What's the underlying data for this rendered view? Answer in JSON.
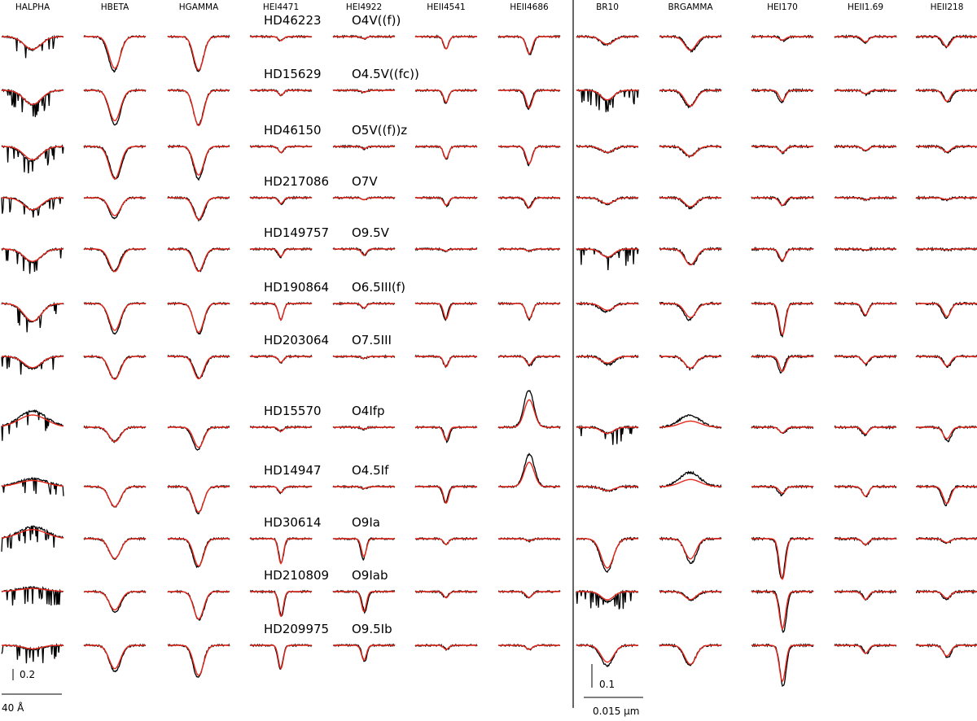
{
  "chart_data": {
    "type": "line",
    "title": "",
    "legend": "none",
    "grid": false,
    "colors": {
      "observed": "#000000",
      "model": "#e8281c"
    },
    "optical_columns": [
      "HALPHA",
      "HBETA",
      "HGAMMA",
      "HEI4471",
      "HEI4922",
      "HEII4541",
      "HEII4686"
    ],
    "ir_columns": [
      "BR10",
      "BRGAMMA",
      "HEI170",
      "HEII1.69",
      "HEII218"
    ],
    "stars": [
      {
        "id": "HD46223",
        "sptype": "O4V((f))"
      },
      {
        "id": "HD15629",
        "sptype": "O4.5V((fc))"
      },
      {
        "id": "HD46150",
        "sptype": "O5V((f))z"
      },
      {
        "id": "HD217086",
        "sptype": "O7V"
      },
      {
        "id": "HD149757",
        "sptype": "O9.5V"
      },
      {
        "id": "HD190864",
        "sptype": "O6.5III(f)"
      },
      {
        "id": "HD203064",
        "sptype": "O7.5III"
      },
      {
        "id": "HD15570",
        "sptype": "O4Ifp"
      },
      {
        "id": "HD14947",
        "sptype": "O4.5If"
      },
      {
        "id": "HD30614",
        "sptype": "O9Ia"
      },
      {
        "id": "HD210809",
        "sptype": "O9Iab"
      },
      {
        "id": "HD209975",
        "sptype": "O9.5Ib"
      }
    ],
    "scale_bars": {
      "optical": {
        "flux": "0.2",
        "wavelength": "40 Å"
      },
      "ir": {
        "flux": "0.1",
        "wavelength": "0.015 μm"
      }
    },
    "optical_depths": [
      [
        0.32,
        0.85,
        0.85,
        0.1,
        0.05,
        0.3,
        0.45
      ],
      [
        0.35,
        0.85,
        0.85,
        0.12,
        0.05,
        0.32,
        0.45
      ],
      [
        0.35,
        0.8,
        0.8,
        0.15,
        0.06,
        0.32,
        0.45
      ],
      [
        0.3,
        0.5,
        0.55,
        0.15,
        0.05,
        0.2,
        0.25
      ],
      [
        0.32,
        0.55,
        0.55,
        0.2,
        0.15,
        0.05,
        0.05
      ],
      [
        0.45,
        0.75,
        0.75,
        0.4,
        0.12,
        0.4,
        0.4
      ],
      [
        0.3,
        0.55,
        0.55,
        0.15,
        0.05,
        0.25,
        0.22
      ],
      [
        -0.4,
        0.35,
        0.55,
        0.1,
        0.05,
        0.35,
        -0.9
      ],
      [
        -0.2,
        0.5,
        0.65,
        0.15,
        0.05,
        0.4,
        -0.8
      ],
      [
        -0.3,
        0.5,
        0.7,
        0.6,
        0.5,
        0.15,
        0.05
      ],
      [
        -0.1,
        0.5,
        0.7,
        0.6,
        0.5,
        0.15,
        0.15
      ],
      [
        0.1,
        0.65,
        0.8,
        0.6,
        0.4,
        0.1,
        0.1
      ]
    ],
    "ir_depths": [
      [
        0.2,
        0.35,
        0.1,
        0.15,
        0.25
      ],
      [
        0.25,
        0.4,
        0.3,
        0.1,
        0.3
      ],
      [
        0.15,
        0.25,
        0.15,
        0.1,
        0.15
      ],
      [
        0.15,
        0.25,
        0.2,
        0.05,
        0.05
      ],
      [
        0.2,
        0.4,
        0.3,
        0.02,
        0.02
      ],
      [
        0.2,
        0.4,
        0.8,
        0.3,
        0.35
      ],
      [
        0.2,
        0.3,
        0.4,
        0.2,
        0.25
      ],
      [
        0.15,
        -0.3,
        0.15,
        0.2,
        0.35
      ],
      [
        0.1,
        -0.35,
        0.2,
        0.25,
        0.45
      ],
      [
        0.8,
        0.6,
        1.0,
        0.15,
        0.1
      ],
      [
        0.25,
        0.2,
        1.0,
        0.2,
        0.2
      ],
      [
        0.5,
        0.5,
        1.0,
        0.2,
        0.3
      ]
    ]
  }
}
